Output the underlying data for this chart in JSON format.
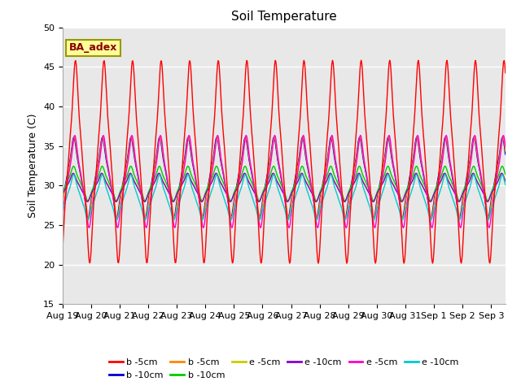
{
  "title": "Soil Temperature",
  "ylabel": "Soil Temperature (C)",
  "ylim": [
    15,
    50
  ],
  "background_color": "#ffffff",
  "plot_bg_color": "#e8e8e8",
  "annotation_text": "BA_adex",
  "annotation_bg": "#ffff99",
  "annotation_border": "#999900",
  "legend_entries": [
    {
      "label": "b -5cm",
      "color": "#ff0000"
    },
    {
      "label": "b -10cm",
      "color": "#0000cc"
    },
    {
      "label": "b -5cm",
      "color": "#ff8800"
    },
    {
      "label": "b -10cm",
      "color": "#00cc00"
    },
    {
      "label": "e -5cm",
      "color": "#cccc00"
    },
    {
      "label": "e -10cm",
      "color": "#8800cc"
    },
    {
      "label": "e -5cm",
      "color": "#ff00cc"
    },
    {
      "label": "e -10cm",
      "color": "#00cccc"
    }
  ],
  "grid_color": "#ffffff",
  "n_days": 15.5,
  "samples_per_day": 48
}
